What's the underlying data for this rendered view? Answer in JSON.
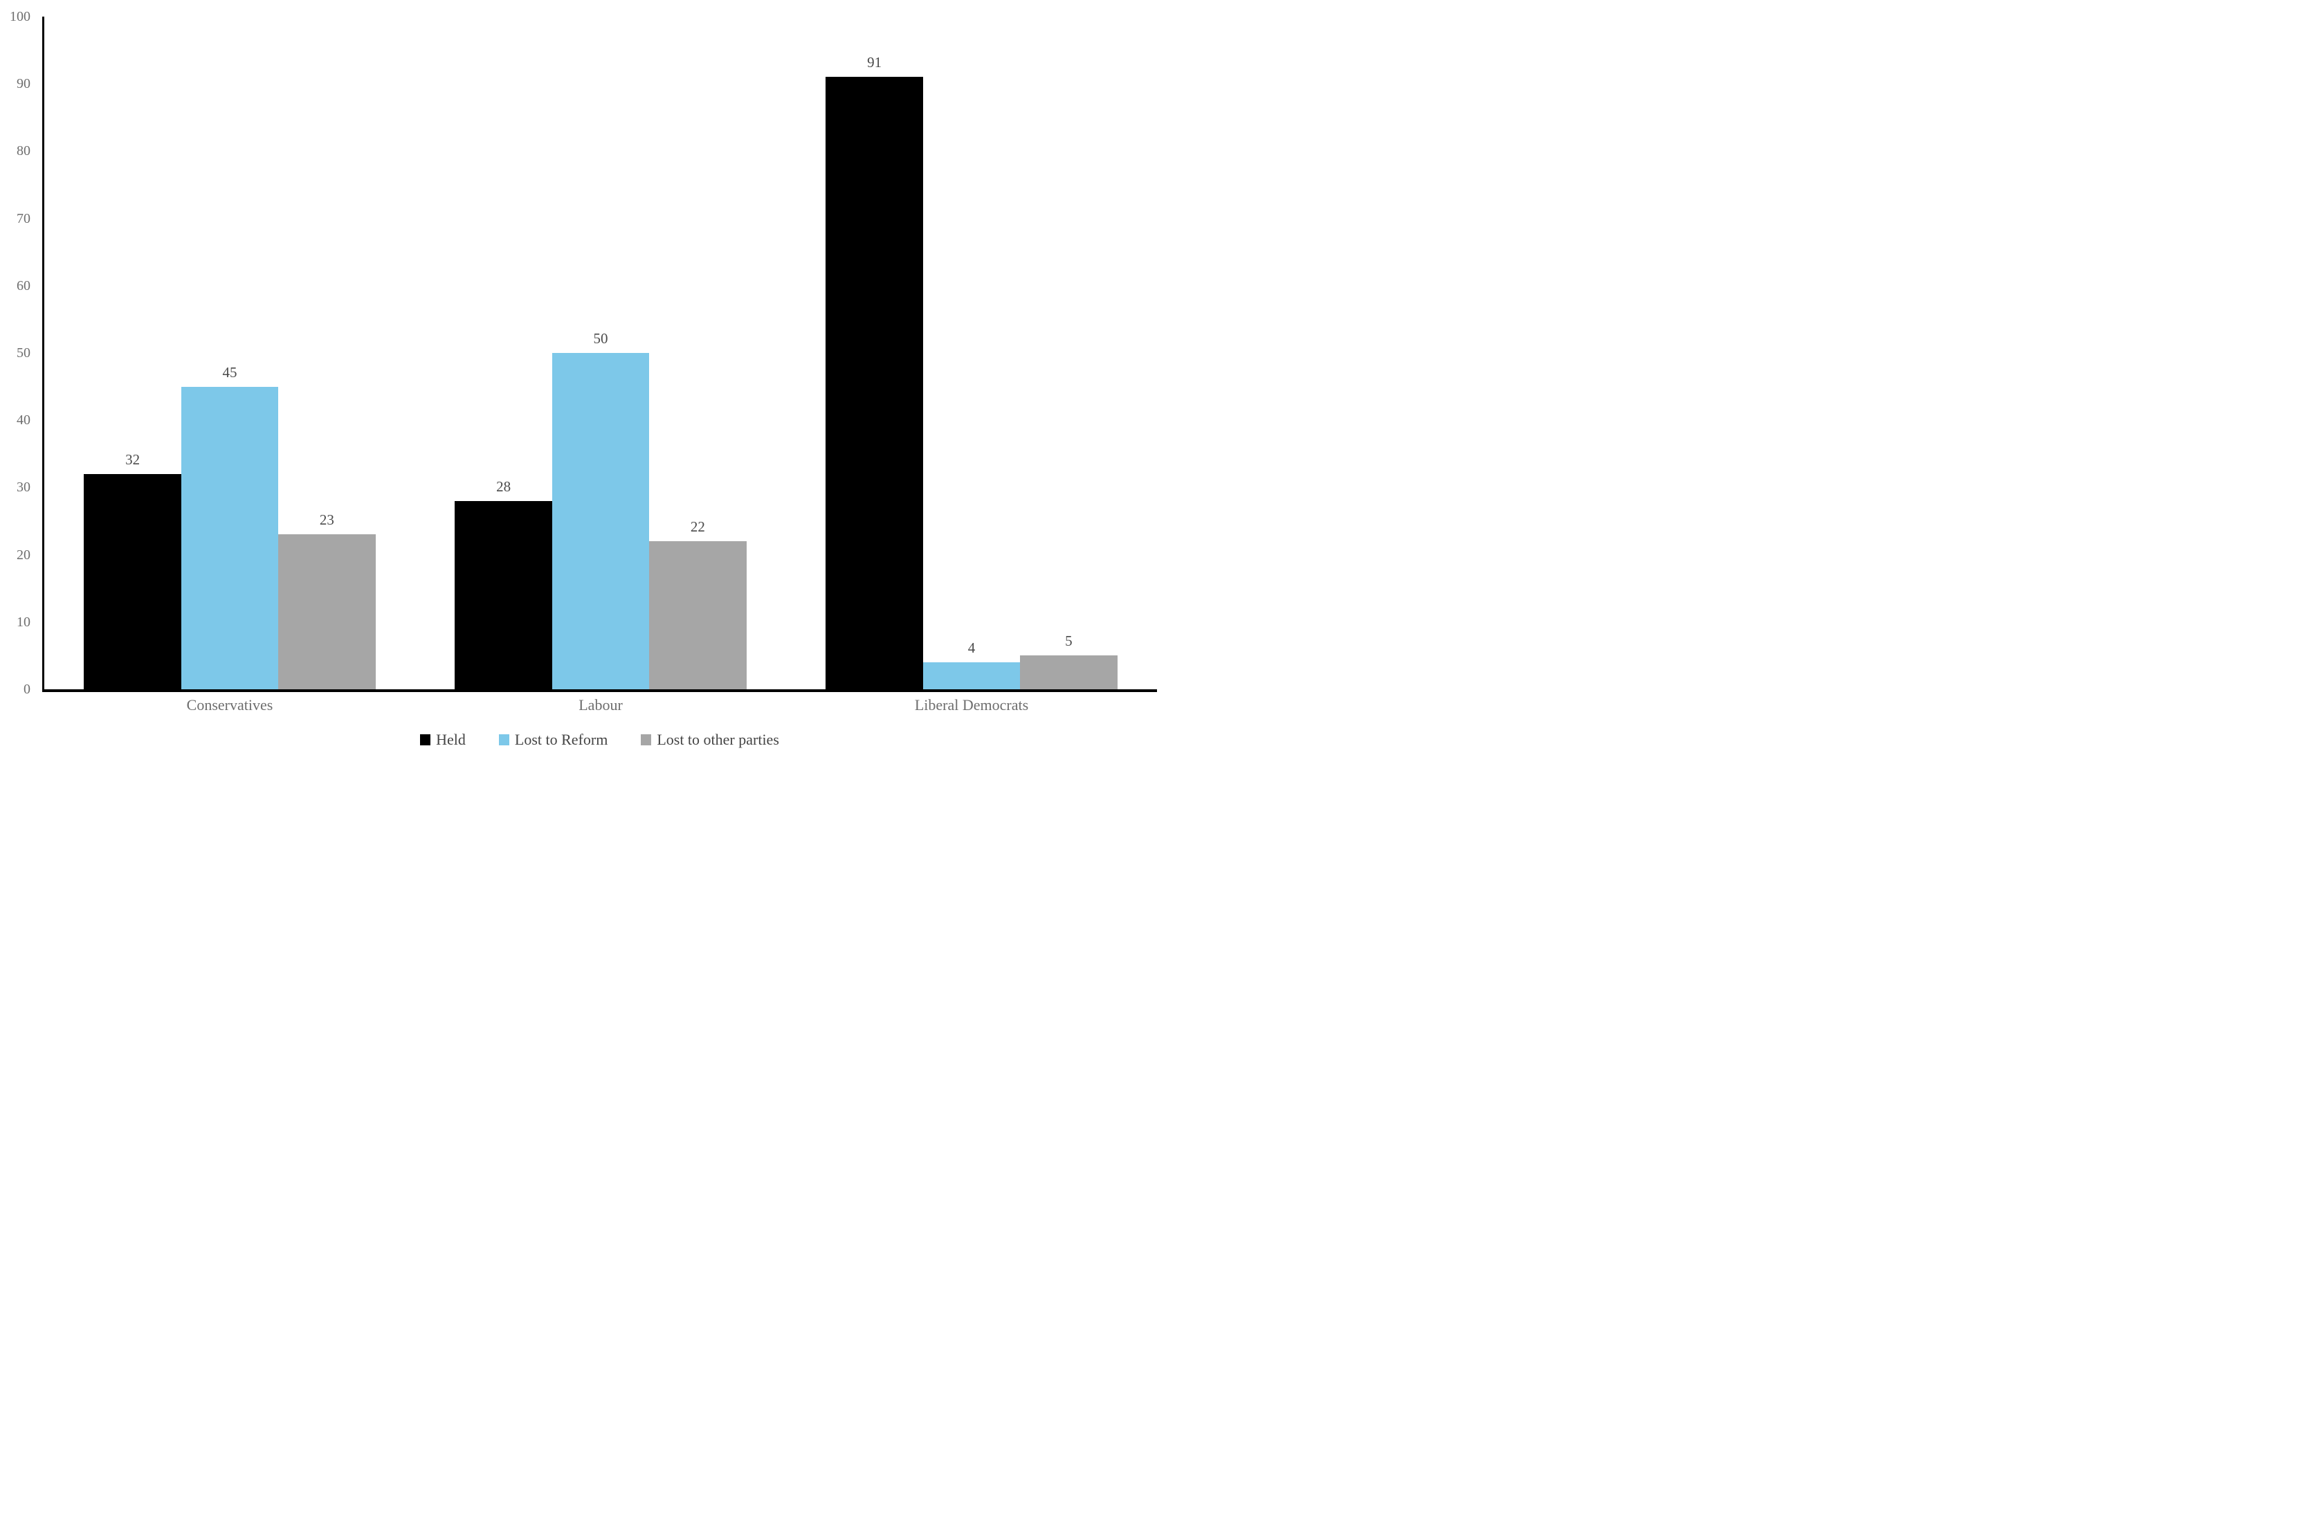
{
  "chart_data": {
    "type": "bar",
    "title": "",
    "xlabel": "",
    "ylabel": "",
    "categories": [
      "Conservatives",
      "Labour",
      "Liberal Democrats"
    ],
    "series": [
      {
        "name": "Held",
        "color": "#000000",
        "values": [
          32,
          28,
          91
        ]
      },
      {
        "name": "Lost to Reform",
        "color": "#7DC8E9",
        "values": [
          45,
          50,
          4
        ]
      },
      {
        "name": "Lost to other parties",
        "color": "#A6A6A6",
        "values": [
          23,
          22,
          5
        ]
      }
    ],
    "ylim": [
      0,
      100
    ],
    "yticks": [
      0,
      10,
      20,
      30,
      40,
      50,
      60,
      70,
      80,
      90,
      100
    ],
    "grid": false,
    "legend_position": "bottom",
    "data_labels_shown": true
  },
  "styles": {
    "background": "#ffffff",
    "axis_line_color": "#000000",
    "tick_label_color": "#6e6e6e",
    "category_label_color": "#6e6e6e",
    "bar_label_color": "#4a4a4a",
    "legend_text_color": "#444444"
  }
}
